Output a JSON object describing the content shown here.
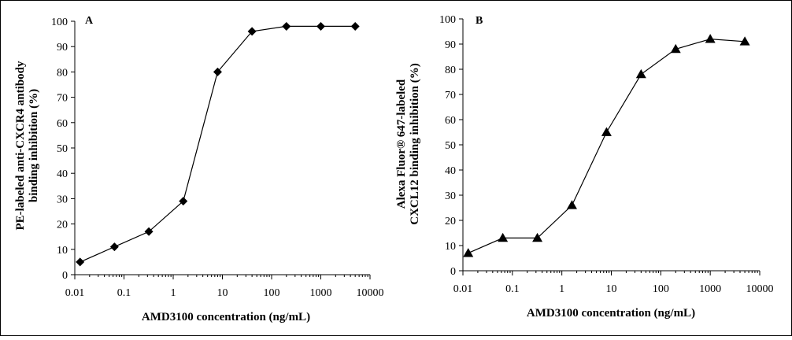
{
  "chart_data": [
    {
      "panel": "A",
      "type": "line",
      "marker": "diamond",
      "x_scale": "log",
      "xlabel": "AMD3100 concentration (ng/mL)",
      "ylabel_lines": [
        "PE-labeled anti-CXCR4 antibody",
        "binding inhibition (%)"
      ],
      "xlim": [
        0.01,
        10000
      ],
      "ylim": [
        0,
        100
      ],
      "x_ticks": [
        0.01,
        0.1,
        1,
        10,
        100,
        1000,
        10000
      ],
      "x_tick_labels": [
        "0.01",
        "0.1",
        "1",
        "10",
        "100",
        "1000",
        "10000"
      ],
      "y_ticks": [
        0,
        10,
        20,
        30,
        40,
        50,
        60,
        70,
        80,
        90,
        100
      ],
      "y_tick_labels": [
        "0",
        "10",
        "20",
        "30",
        "40",
        "50",
        "60",
        "70",
        "80",
        "90",
        "100"
      ],
      "grid": false,
      "series": [
        {
          "x": [
            0.0128,
            0.064,
            0.32,
            1.6,
            8,
            40,
            200,
            1000,
            5000
          ],
          "y": [
            5,
            11,
            17,
            29,
            80,
            96,
            98,
            98,
            98
          ]
        }
      ]
    },
    {
      "panel": "B",
      "type": "line",
      "marker": "triangle",
      "x_scale": "log",
      "xlabel": "AMD3100 concentration (ng/mL)",
      "ylabel_lines": [
        "Alexa Fluor® 647-labeled",
        "CXCL12 binding inhibition (%)"
      ],
      "xlim": [
        0.01,
        10000
      ],
      "ylim": [
        0,
        100
      ],
      "x_ticks": [
        0.01,
        0.1,
        1,
        10,
        100,
        1000,
        10000
      ],
      "x_tick_labels": [
        "0.01",
        "0.1",
        "1",
        "10",
        "100",
        "1000",
        "10000"
      ],
      "y_ticks": [
        0,
        10,
        20,
        30,
        40,
        50,
        60,
        70,
        80,
        90,
        100
      ],
      "y_tick_labels": [
        "0",
        "10",
        "20",
        "30",
        "40",
        "50",
        "60",
        "70",
        "80",
        "90",
        "100"
      ],
      "grid": false,
      "series": [
        {
          "x": [
            0.0128,
            0.064,
            0.32,
            1.6,
            8,
            40,
            200,
            1000,
            5000
          ],
          "y": [
            7,
            13,
            13,
            26,
            55,
            78,
            88,
            92,
            91
          ]
        }
      ]
    }
  ]
}
